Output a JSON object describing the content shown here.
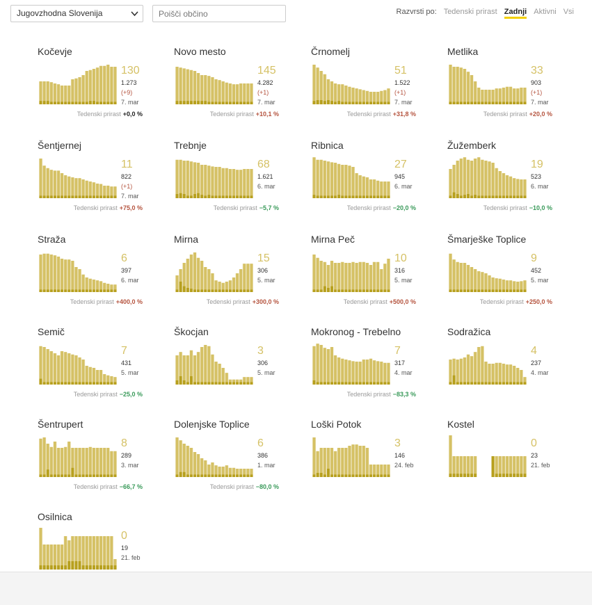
{
  "filters": {
    "region": "Jugovzhodna Slovenija",
    "search_placeholder": "Poišči občino",
    "sort_label": "Razvrsti po:",
    "sort_options": [
      "Tedenski prirast",
      "Zadnji",
      "Aktivni",
      "Vsi"
    ],
    "sort_active": "Zadnji"
  },
  "colors": {
    "bar": "#d5c165",
    "bar_dark": "#b7a01e",
    "accent": "#f3d000",
    "growth_up": "#b5543f",
    "growth_down": "#3a9a5a"
  },
  "growth_label": "Tedenski prirast",
  "municipalities": [
    {
      "name": "Kočevje",
      "value": "130",
      "total": "1.273",
      "diff": "(+9)",
      "date": "7. mar",
      "growth": "+0,0 %",
      "trend": "flat",
      "series": [
        55,
        55,
        55,
        53,
        50,
        48,
        45,
        45,
        45,
        60,
        62,
        65,
        70,
        80,
        82,
        85,
        88,
        92,
        92,
        95,
        90,
        90
      ],
      "daily": [
        8,
        8,
        8,
        6,
        6,
        6,
        6,
        6,
        6,
        6,
        6,
        6,
        6,
        6,
        8,
        8,
        6,
        6,
        6,
        6,
        6,
        6
      ]
    },
    {
      "name": "Novo mesto",
      "value": "145",
      "total": "4.282",
      "diff": "(+1)",
      "date": "7. mar",
      "growth": "+10,1 %",
      "trend": "up",
      "series": [
        90,
        88,
        86,
        84,
        82,
        80,
        75,
        70,
        70,
        68,
        65,
        60,
        58,
        55,
        52,
        50,
        48,
        48,
        50,
        50,
        50,
        50
      ],
      "daily": [
        8,
        8,
        8,
        8,
        8,
        8,
        8,
        8,
        8,
        6,
        6,
        6,
        6,
        6,
        6,
        6,
        6,
        6,
        6,
        6,
        6,
        6
      ]
    },
    {
      "name": "Črnomelj",
      "value": "51",
      "total": "1.522",
      "diff": "(+1)",
      "date": "7. mar",
      "growth": "+31,8 %",
      "trend": "up",
      "series": [
        95,
        88,
        80,
        72,
        60,
        55,
        50,
        48,
        48,
        45,
        42,
        40,
        38,
        36,
        34,
        32,
        30,
        30,
        30,
        32,
        34,
        38
      ],
      "daily": [
        8,
        10,
        10,
        8,
        10,
        8,
        6,
        8,
        6,
        6,
        6,
        6,
        6,
        6,
        6,
        6,
        6,
        6,
        6,
        6,
        6,
        6
      ]
    },
    {
      "name": "Metlika",
      "value": "33",
      "total": "903",
      "diff": "(+1)",
      "date": "7. mar",
      "growth": "+20,0 %",
      "trend": "up",
      "series": [
        95,
        90,
        90,
        88,
        85,
        78,
        70,
        55,
        40,
        35,
        35,
        35,
        35,
        38,
        38,
        40,
        42,
        42,
        38,
        38,
        40,
        40
      ],
      "daily": [
        6,
        6,
        6,
        6,
        6,
        6,
        6,
        6,
        6,
        6,
        6,
        6,
        6,
        6,
        6,
        6,
        6,
        6,
        6,
        6,
        6,
        6
      ]
    },
    {
      "name": "Šentjernej",
      "value": "11",
      "total": "822",
      "diff": "(+1)",
      "date": "7. mar",
      "growth": "+75,0 %",
      "trend": "up",
      "series": [
        95,
        78,
        72,
        68,
        66,
        66,
        60,
        55,
        52,
        50,
        48,
        48,
        45,
        42,
        40,
        38,
        35,
        34,
        30,
        30,
        28,
        28
      ],
      "daily": [
        6,
        6,
        6,
        6,
        6,
        6,
        6,
        6,
        6,
        6,
        6,
        6,
        6,
        6,
        6,
        6,
        6,
        6,
        6,
        6,
        6,
        6
      ]
    },
    {
      "name": "Trebnje",
      "value": "68",
      "total": "1.621",
      "diff": "",
      "date": "6. mar",
      "growth": "−5,7 %",
      "trend": "down",
      "series": [
        92,
        92,
        90,
        90,
        88,
        86,
        85,
        80,
        80,
        78,
        76,
        75,
        75,
        72,
        72,
        70,
        70,
        68,
        68,
        70,
        70,
        70
      ],
      "daily": [
        10,
        12,
        10,
        6,
        6,
        10,
        12,
        8,
        6,
        8,
        6,
        6,
        6,
        6,
        6,
        6,
        6,
        6,
        6,
        6,
        6,
        6
      ]
    },
    {
      "name": "Ribnica",
      "value": "27",
      "total": "945",
      "diff": "",
      "date": "6. mar",
      "growth": "−20,0 %",
      "trend": "down",
      "series": [
        98,
        92,
        92,
        90,
        88,
        86,
        85,
        82,
        80,
        80,
        78,
        75,
        60,
        55,
        52,
        50,
        45,
        45,
        42,
        40,
        40,
        40
      ],
      "daily": [
        8,
        6,
        6,
        6,
        6,
        6,
        6,
        8,
        6,
        6,
        6,
        6,
        6,
        6,
        6,
        6,
        6,
        6,
        6,
        6,
        6,
        6
      ]
    },
    {
      "name": "Žužemberk",
      "value": "19",
      "total": "523",
      "diff": "",
      "date": "6. mar",
      "growth": "−10,0 %",
      "trend": "down",
      "series": [
        70,
        80,
        90,
        95,
        98,
        92,
        90,
        95,
        98,
        92,
        90,
        88,
        85,
        72,
        65,
        60,
        55,
        52,
        48,
        46,
        45,
        45
      ],
      "daily": [
        6,
        14,
        10,
        6,
        8,
        10,
        6,
        8,
        6,
        6,
        6,
        6,
        6,
        6,
        6,
        6,
        6,
        6,
        6,
        6,
        6,
        6
      ]
    },
    {
      "name": "Straža",
      "value": "6",
      "total": "397",
      "diff": "",
      "date": "6. mar",
      "growth": "+400,0 %",
      "trend": "up",
      "series": [
        90,
        92,
        92,
        90,
        88,
        85,
        80,
        78,
        78,
        75,
        60,
        55,
        42,
        35,
        32,
        30,
        28,
        26,
        22,
        20,
        18,
        18
      ],
      "daily": [
        6,
        6,
        6,
        6,
        6,
        6,
        6,
        6,
        6,
        6,
        6,
        6,
        6,
        6,
        6,
        6,
        6,
        6,
        6,
        6,
        6,
        6
      ]
    },
    {
      "name": "Mirna",
      "value": "15",
      "total": "306",
      "diff": "",
      "date": "5. mar",
      "growth": "+300,0 %",
      "trend": "up",
      "series": [
        40,
        55,
        70,
        80,
        90,
        95,
        82,
        75,
        60,
        55,
        45,
        28,
        25,
        22,
        25,
        28,
        35,
        45,
        55,
        68,
        68,
        68
      ],
      "daily": [
        6,
        25,
        14,
        10,
        8,
        6,
        6,
        6,
        6,
        6,
        6,
        6,
        6,
        6,
        6,
        6,
        6,
        6,
        6,
        6,
        6,
        6
      ]
    },
    {
      "name": "Mirna Peč",
      "value": "10",
      "total": "316",
      "diff": "",
      "date": "5. mar",
      "growth": "+500,0 %",
      "trend": "up",
      "series": [
        90,
        82,
        75,
        72,
        65,
        75,
        70,
        70,
        72,
        70,
        70,
        72,
        70,
        72,
        72,
        70,
        65,
        72,
        72,
        55,
        68,
        80
      ],
      "daily": [
        6,
        6,
        6,
        14,
        10,
        14,
        6,
        6,
        6,
        6,
        6,
        6,
        6,
        6,
        6,
        6,
        6,
        6,
        6,
        6,
        6,
        6
      ]
    },
    {
      "name": "Šmarješke Toplice",
      "value": "9",
      "total": "452",
      "diff": "",
      "date": "5. mar",
      "growth": "+250,0 %",
      "trend": "up",
      "series": [
        92,
        78,
        72,
        70,
        70,
        65,
        60,
        55,
        50,
        48,
        45,
        40,
        35,
        33,
        32,
        30,
        28,
        28,
        26,
        25,
        26,
        28
      ],
      "daily": [
        6,
        6,
        6,
        6,
        6,
        6,
        6,
        6,
        6,
        6,
        6,
        6,
        6,
        6,
        6,
        6,
        6,
        6,
        6,
        6,
        6,
        6
      ]
    },
    {
      "name": "Semič",
      "value": "7",
      "total": "431",
      "diff": "",
      "date": "5. mar",
      "growth": "−25,0 %",
      "trend": "down",
      "series": [
        92,
        90,
        85,
        80,
        75,
        70,
        80,
        78,
        75,
        72,
        70,
        65,
        60,
        45,
        42,
        40,
        35,
        35,
        25,
        22,
        20,
        18
      ],
      "daily": [
        14,
        6,
        6,
        6,
        6,
        6,
        6,
        6,
        6,
        6,
        6,
        6,
        6,
        6,
        6,
        6,
        6,
        6,
        6,
        6,
        6,
        6
      ]
    },
    {
      "name": "Škocjan",
      "value": "3",
      "total": "306",
      "diff": "",
      "date": "5. mar",
      "growth": "",
      "trend": "none",
      "series": [
        70,
        78,
        70,
        70,
        82,
        70,
        78,
        90,
        95,
        92,
        72,
        55,
        50,
        40,
        28,
        12,
        12,
        12,
        12,
        18,
        18,
        18
      ],
      "daily": [
        10,
        20,
        10,
        6,
        20,
        6,
        6,
        6,
        6,
        6,
        6,
        6,
        6,
        6,
        6,
        6,
        6,
        6,
        6,
        6,
        6,
        6
      ]
    },
    {
      "name": "Mokronog - Trebelno",
      "value": "7",
      "total": "317",
      "diff": "",
      "date": "4. mar",
      "growth": "−83,3 %",
      "trend": "down",
      "series": [
        92,
        98,
        95,
        88,
        85,
        90,
        70,
        65,
        62,
        60,
        58,
        56,
        55,
        55,
        60,
        60,
        62,
        58,
        56,
        55,
        52,
        52
      ],
      "daily": [
        10,
        6,
        6,
        6,
        6,
        6,
        6,
        6,
        6,
        6,
        6,
        6,
        6,
        6,
        6,
        6,
        6,
        6,
        6,
        6,
        6,
        6
      ]
    },
    {
      "name": "Sodražica",
      "value": "4",
      "total": "237",
      "diff": "",
      "date": "4. mar",
      "growth": "",
      "trend": "none",
      "series": [
        60,
        62,
        60,
        62,
        65,
        72,
        68,
        78,
        90,
        92,
        55,
        50,
        50,
        52,
        52,
        50,
        48,
        48,
        45,
        40,
        35,
        18
      ],
      "daily": [
        6,
        22,
        6,
        6,
        6,
        6,
        6,
        6,
        6,
        6,
        6,
        6,
        6,
        6,
        6,
        6,
        6,
        6,
        6,
        6,
        6,
        6
      ]
    },
    {
      "name": "Šentrupert",
      "value": "8",
      "total": "289",
      "diff": "",
      "date": "3. mar",
      "growth": "−66,7 %",
      "trend": "down",
      "series": [
        92,
        95,
        80,
        72,
        85,
        70,
        70,
        72,
        85,
        70,
        70,
        70,
        70,
        70,
        72,
        70,
        70,
        70,
        70,
        70,
        62,
        62
      ],
      "daily": [
        6,
        6,
        18,
        6,
        6,
        6,
        6,
        6,
        6,
        22,
        6,
        6,
        6,
        6,
        6,
        6,
        6,
        6,
        6,
        6,
        6,
        6
      ]
    },
    {
      "name": "Dolenjske Toplice",
      "value": "6",
      "total": "386",
      "diff": "",
      "date": "1. mar",
      "growth": "−80,0 %",
      "trend": "down",
      "series": [
        95,
        88,
        80,
        75,
        70,
        60,
        55,
        45,
        40,
        30,
        35,
        28,
        25,
        25,
        28,
        22,
        22,
        20,
        20,
        20,
        20,
        20
      ],
      "daily": [
        6,
        12,
        12,
        6,
        6,
        6,
        6,
        6,
        6,
        6,
        6,
        6,
        6,
        6,
        6,
        6,
        6,
        6,
        6,
        6,
        6,
        6
      ]
    },
    {
      "name": "Loški Potok",
      "value": "3",
      "total": "146",
      "diff": "",
      "date": "24. feb",
      "growth": "",
      "trend": "none",
      "series": [
        95,
        62,
        70,
        70,
        70,
        70,
        62,
        70,
        70,
        70,
        75,
        78,
        78,
        75,
        75,
        70,
        30,
        30,
        30,
        30,
        30,
        30
      ],
      "daily": [
        6,
        10,
        10,
        6,
        20,
        6,
        6,
        6,
        6,
        6,
        6,
        6,
        6,
        6,
        6,
        6,
        6,
        6,
        6,
        6,
        6,
        6
      ]
    },
    {
      "name": "Kostel",
      "value": "0",
      "total": "23",
      "diff": "",
      "date": "21. feb",
      "growth": "",
      "trend": "none",
      "series": [
        100,
        50,
        50,
        50,
        50,
        50,
        50,
        50,
        0,
        0,
        0,
        0,
        50,
        50,
        50,
        50,
        50,
        50,
        50,
        50,
        50,
        50
      ],
      "daily": [
        8,
        8,
        8,
        8,
        8,
        8,
        8,
        8,
        0,
        0,
        0,
        0,
        50,
        8,
        8,
        8,
        8,
        8,
        8,
        8,
        8,
        8
      ]
    },
    {
      "name": "Osilnica",
      "value": "0",
      "total": "19",
      "diff": "",
      "date": "21. feb",
      "growth": "",
      "trend": "none",
      "series": [
        100,
        60,
        60,
        60,
        60,
        60,
        60,
        80,
        70,
        80,
        80,
        80,
        80,
        80,
        80,
        80,
        80,
        80,
        80,
        80,
        80,
        25
      ],
      "daily": [
        10,
        10,
        10,
        10,
        10,
        10,
        10,
        10,
        20,
        20,
        20,
        20,
        10,
        10,
        10,
        10,
        10,
        10,
        10,
        10,
        10,
        10
      ]
    }
  ]
}
